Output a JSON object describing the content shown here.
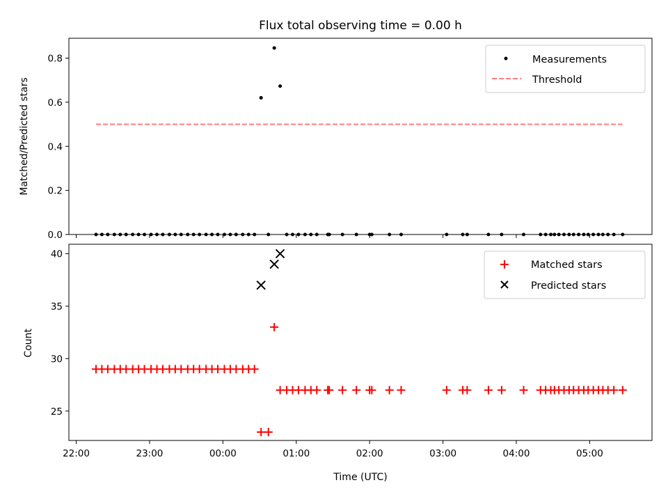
{
  "chart_data": [
    {
      "type": "scatter",
      "title": "Flux total observing time = 0.00 h",
      "xlabel": "",
      "ylabel": "Matched/Predicted stars",
      "ylim": [
        0,
        0.89
      ],
      "yticks": [
        "0.0",
        "0.2",
        "0.4",
        "0.6",
        "0.8"
      ],
      "ytick_values": [
        0,
        0.2,
        0.4,
        0.6,
        0.8
      ],
      "x_unit": "hours relative to 00:00 UTC",
      "xlim": [
        -2.1,
        5.85
      ],
      "legend_position": "top-right",
      "series": [
        {
          "name": "Measurements",
          "marker": "dot",
          "color": "#000000",
          "x": [
            -1.73,
            -1.65,
            -1.57,
            -1.48,
            -1.4,
            -1.32,
            -1.23,
            -1.15,
            -1.07,
            -0.98,
            -0.9,
            -0.82,
            -0.73,
            -0.65,
            -0.57,
            -0.48,
            -0.4,
            -0.32,
            -0.23,
            -0.15,
            -0.07,
            0.02,
            0.1,
            0.18,
            0.27,
            0.35,
            0.43,
            0.52,
            0.62,
            0.7,
            0.78,
            0.87,
            0.95,
            1.03,
            1.12,
            1.2,
            1.28,
            1.43,
            1.45,
            1.63,
            1.82,
            2.0,
            2.03,
            2.27,
            2.43,
            3.05,
            3.27,
            3.33,
            3.62,
            3.8,
            4.1,
            4.33,
            4.4,
            4.47,
            4.52,
            4.58,
            4.65,
            4.72,
            4.78,
            4.85,
            4.92,
            4.98,
            5.05,
            5.12,
            5.18,
            5.25,
            5.33,
            5.45
          ],
          "y": [
            0,
            0,
            0,
            0,
            0,
            0,
            0,
            0,
            0,
            0,
            0,
            0,
            0,
            0,
            0,
            0,
            0,
            0,
            0,
            0,
            0,
            0,
            0,
            0,
            0,
            0,
            0,
            0.62,
            0,
            0.846,
            0.673,
            0,
            0,
            0,
            0,
            0,
            0,
            0,
            0,
            0,
            0,
            0,
            0,
            0,
            0,
            0,
            0,
            0,
            0,
            0,
            0,
            0,
            0,
            0,
            0,
            0,
            0,
            0,
            0,
            0,
            0,
            0,
            0,
            0,
            0,
            0,
            0,
            0
          ]
        },
        {
          "name": "Threshold",
          "marker": "dashed-line",
          "color": "#ff7f7f",
          "x": [
            -1.73,
            5.45
          ],
          "y": [
            0.5,
            0.5
          ]
        }
      ]
    },
    {
      "type": "scatter",
      "title": "",
      "xlabel": "Time (UTC)",
      "ylabel": "Count",
      "ylim": [
        22.2,
        40.9
      ],
      "yticks": [
        "25",
        "30",
        "35",
        "40"
      ],
      "ytick_values": [
        25,
        30,
        35,
        40
      ],
      "x_unit": "hours relative to 00:00 UTC",
      "xlim": [
        -2.1,
        5.85
      ],
      "xticks": [
        "22:00",
        "23:00",
        "00:00",
        "01:00",
        "02:00",
        "03:00",
        "04:00",
        "05:00"
      ],
      "xtick_values": [
        -2,
        -1,
        0,
        1,
        2,
        3,
        4,
        5
      ],
      "legend_position": "top-right",
      "series": [
        {
          "name": "Matched stars",
          "marker": "plus",
          "color": "#ff0000",
          "x": [
            -1.73,
            -1.65,
            -1.57,
            -1.48,
            -1.4,
            -1.32,
            -1.23,
            -1.15,
            -1.07,
            -0.98,
            -0.9,
            -0.82,
            -0.73,
            -0.65,
            -0.57,
            -0.48,
            -0.4,
            -0.32,
            -0.23,
            -0.15,
            -0.07,
            0.02,
            0.1,
            0.18,
            0.27,
            0.35,
            0.43,
            0.52,
            0.62,
            0.7,
            0.78,
            0.87,
            0.95,
            1.03,
            1.12,
            1.2,
            1.28,
            1.43,
            1.45,
            1.63,
            1.82,
            2.0,
            2.03,
            2.27,
            2.43,
            3.05,
            3.27,
            3.33,
            3.62,
            3.8,
            4.1,
            4.33,
            4.4,
            4.47,
            4.52,
            4.58,
            4.65,
            4.72,
            4.78,
            4.85,
            4.92,
            4.98,
            5.05,
            5.12,
            5.18,
            5.25,
            5.33,
            5.45
          ],
          "y": [
            29,
            29,
            29,
            29,
            29,
            29,
            29,
            29,
            29,
            29,
            29,
            29,
            29,
            29,
            29,
            29,
            29,
            29,
            29,
            29,
            29,
            29,
            29,
            29,
            29,
            29,
            29,
            23,
            23,
            33,
            27,
            27,
            27,
            27,
            27,
            27,
            27,
            27,
            27,
            27,
            27,
            27,
            27,
            27,
            27,
            27,
            27,
            27,
            27,
            27,
            27,
            27,
            27,
            27,
            27,
            27,
            27,
            27,
            27,
            27,
            27,
            27,
            27,
            27,
            27,
            27,
            27,
            27
          ]
        },
        {
          "name": "Predicted stars",
          "marker": "x",
          "color": "#000000",
          "x": [
            0.52,
            0.7,
            0.78
          ],
          "y": [
            37,
            39,
            40
          ]
        }
      ]
    }
  ]
}
